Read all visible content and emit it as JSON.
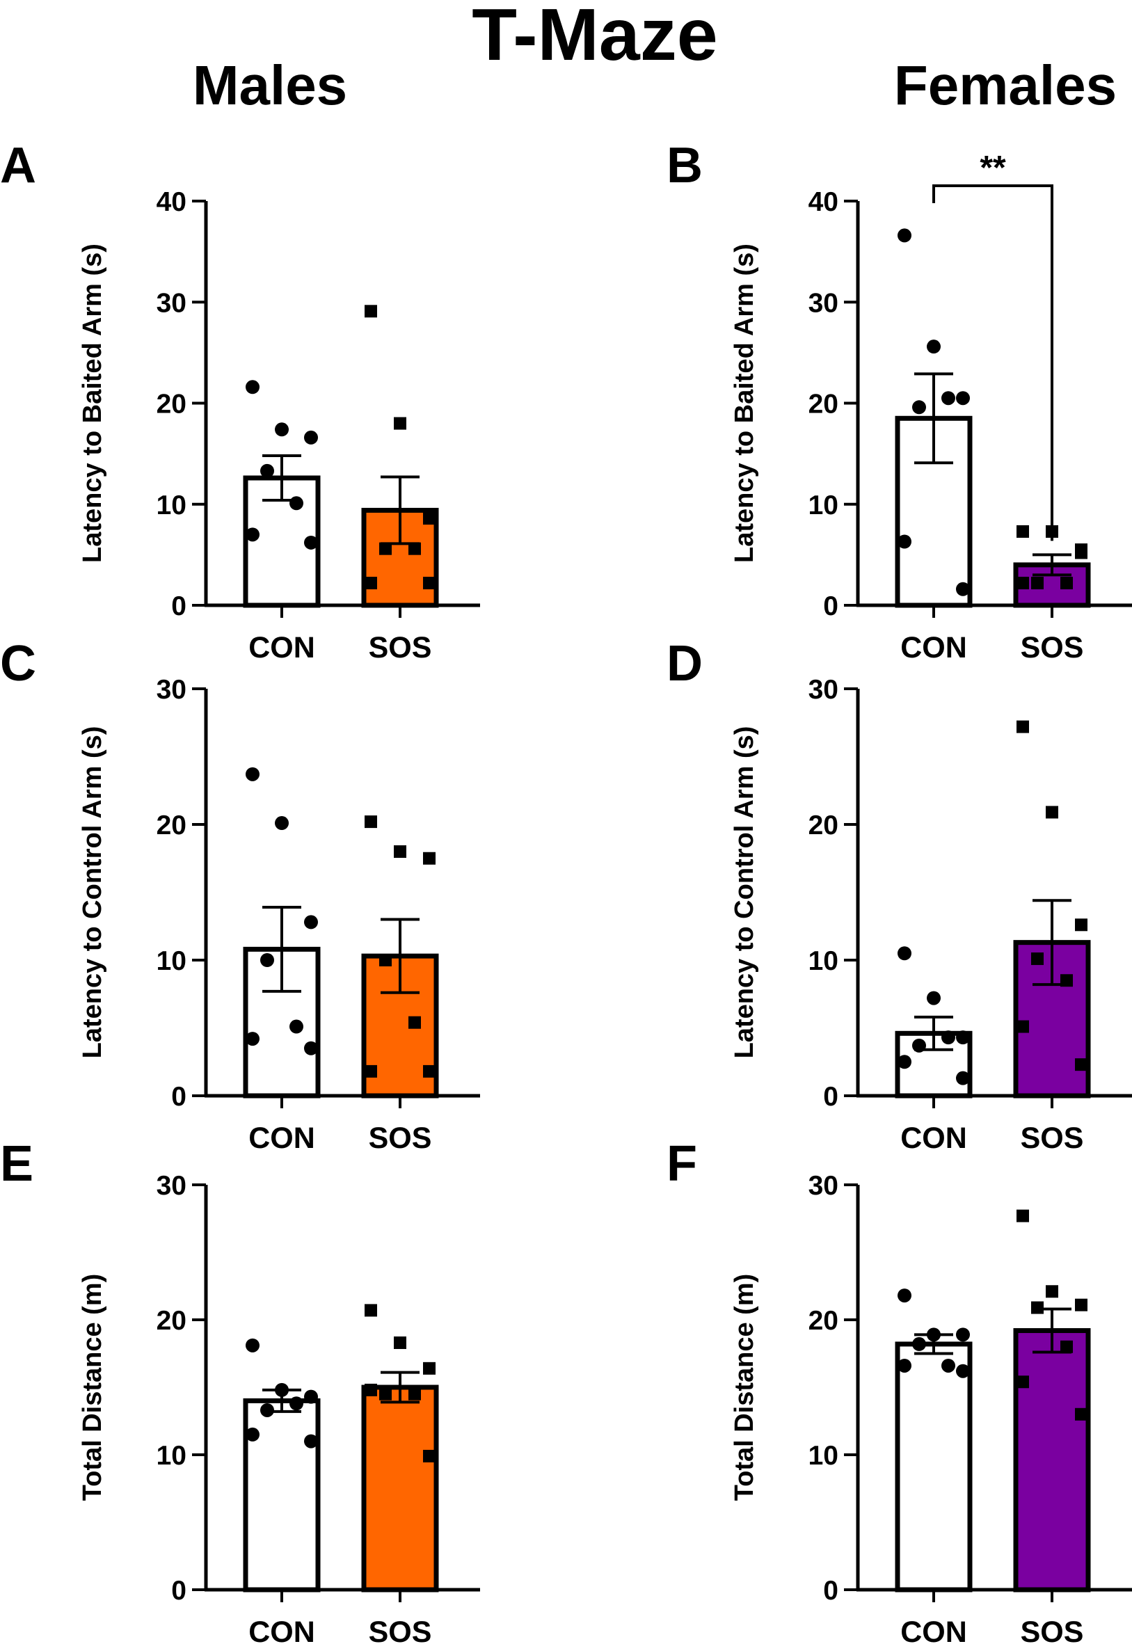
{
  "figure": {
    "title": "T-Maze",
    "column_titles": [
      "Males",
      "Females"
    ]
  },
  "colors": {
    "CON": "#ffffff",
    "SOS_males": "#ff6600",
    "SOS_females": "#7a00a0",
    "axis": "#000000"
  },
  "chart_data": [
    {
      "panel": "A",
      "type": "bar",
      "column": "Males",
      "ylabel": "Latency to Baited Arm (s)",
      "ylim": [
        0,
        40
      ],
      "yticks": [
        0,
        10,
        20,
        30,
        40
      ],
      "categories": [
        "CON",
        "SOS"
      ],
      "means": [
        12.6,
        9.4
      ],
      "sem": [
        2.2,
        3.3
      ],
      "points": [
        [
          21.6,
          17.4,
          16.6,
          13.3,
          10.1,
          7.0,
          6.2
        ],
        [
          29.1,
          18.0,
          8.6,
          5.6,
          5.6,
          2.2,
          2.2
        ]
      ],
      "markers": [
        "circle",
        "square"
      ],
      "significance": null
    },
    {
      "panel": "B",
      "type": "bar",
      "column": "Females",
      "ylabel": "Latency to Baited Arm (s)",
      "ylim": [
        0,
        40
      ],
      "yticks": [
        0,
        10,
        20,
        30,
        40
      ],
      "categories": [
        "CON",
        "SOS"
      ],
      "means": [
        18.5,
        4.0
      ],
      "sem": [
        4.4,
        1.0
      ],
      "points": [
        [
          36.6,
          25.6,
          20.5,
          19.6,
          20.5,
          6.3,
          1.6
        ],
        [
          7.3,
          7.3,
          5.2,
          2.2,
          2.2,
          2.2,
          5.5
        ]
      ],
      "markers": [
        "circle",
        "square"
      ],
      "significance": "**"
    },
    {
      "panel": "C",
      "type": "bar",
      "column": "Males",
      "ylabel": "Latency to Control Arm (s)",
      "ylim": [
        0,
        30
      ],
      "yticks": [
        0,
        10,
        20,
        30
      ],
      "categories": [
        "CON",
        "SOS"
      ],
      "means": [
        10.8,
        10.3
      ],
      "sem": [
        3.1,
        2.7
      ],
      "points": [
        [
          23.7,
          20.1,
          12.8,
          10.0,
          5.1,
          4.2,
          3.5
        ],
        [
          20.2,
          18.0,
          17.5,
          10.0,
          5.4,
          1.8,
          1.8
        ]
      ],
      "markers": [
        "circle",
        "square"
      ],
      "significance": null
    },
    {
      "panel": "D",
      "type": "bar",
      "column": "Females",
      "ylabel": "Latency to Control Arm (s)",
      "ylim": [
        0,
        30
      ],
      "yticks": [
        0,
        10,
        20,
        30
      ],
      "categories": [
        "CON",
        "SOS"
      ],
      "means": [
        4.6,
        11.3
      ],
      "sem": [
        1.2,
        3.1
      ],
      "points": [
        [
          10.5,
          7.2,
          4.3,
          3.7,
          4.3,
          2.5,
          1.3
        ],
        [
          27.2,
          20.9,
          12.6,
          10.1,
          8.5,
          5.1,
          2.3
        ]
      ],
      "markers": [
        "circle",
        "square"
      ],
      "significance": null
    },
    {
      "panel": "E",
      "type": "bar",
      "column": "Males",
      "ylabel": "Total Distance (m)",
      "ylim": [
        0,
        30
      ],
      "yticks": [
        0,
        10,
        20,
        30
      ],
      "categories": [
        "CON",
        "SOS"
      ],
      "means": [
        14.0,
        15.0
      ],
      "sem": [
        0.8,
        1.1
      ],
      "points": [
        [
          18.1,
          14.8,
          14.3,
          13.3,
          13.8,
          11.5,
          11.0
        ],
        [
          20.7,
          18.3,
          16.4,
          14.5,
          14.5,
          14.8,
          9.9
        ]
      ],
      "markers": [
        "circle",
        "square"
      ],
      "significance": null
    },
    {
      "panel": "F",
      "type": "bar",
      "column": "Females",
      "ylabel": "Total Distance (m)",
      "ylim": [
        0,
        30
      ],
      "yticks": [
        0,
        10,
        20,
        30
      ],
      "categories": [
        "CON",
        "SOS"
      ],
      "means": [
        18.2,
        19.2
      ],
      "sem": [
        0.7,
        1.6
      ],
      "points": [
        [
          21.8,
          18.9,
          18.9,
          18.2,
          16.6,
          16.6,
          16.2
        ],
        [
          27.7,
          22.1,
          21.1,
          20.9,
          18.0,
          15.4,
          13.0
        ]
      ],
      "markers": [
        "circle",
        "square"
      ],
      "significance": null
    }
  ]
}
